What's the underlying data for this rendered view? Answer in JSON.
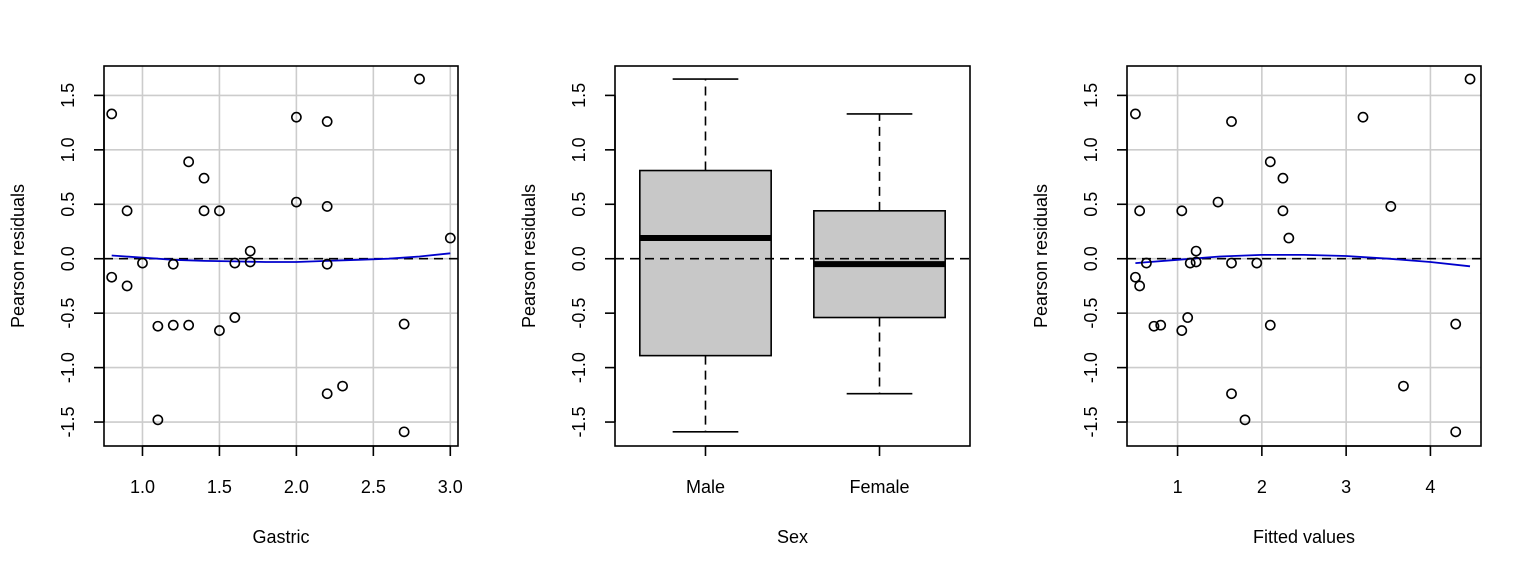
{
  "chart_data": [
    {
      "type": "scatter",
      "xlabel": "Gastric",
      "ylabel": "Pearson residuals",
      "xlim": [
        0.75,
        3.05
      ],
      "ylim": [
        -1.72,
        1.77
      ],
      "x_ticks": [
        "1.0",
        "1.5",
        "2.0",
        "2.5",
        "3.0"
      ],
      "y_ticks": [
        "-1.5",
        "-1.0",
        "-0.5",
        "0.0",
        "0.5",
        "1.0",
        "1.5"
      ],
      "grid": true,
      "reference_line": 0,
      "points": [
        [
          0.8,
          1.33
        ],
        [
          0.8,
          -0.17
        ],
        [
          0.9,
          0.44
        ],
        [
          0.9,
          -0.25
        ],
        [
          1.0,
          -0.04
        ],
        [
          1.1,
          -0.62
        ],
        [
          1.1,
          -1.48
        ],
        [
          1.2,
          -0.61
        ],
        [
          1.2,
          -0.05
        ],
        [
          1.3,
          0.89
        ],
        [
          1.3,
          -0.61
        ],
        [
          1.4,
          0.74
        ],
        [
          1.4,
          0.44
        ],
        [
          1.5,
          0.44
        ],
        [
          1.5,
          -0.66
        ],
        [
          1.6,
          -0.04
        ],
        [
          1.6,
          -0.54
        ],
        [
          1.7,
          0.07
        ],
        [
          1.7,
          -0.03
        ],
        [
          2.0,
          1.3
        ],
        [
          2.0,
          0.52
        ],
        [
          2.2,
          1.26
        ],
        [
          2.2,
          0.48
        ],
        [
          2.2,
          -0.05
        ],
        [
          2.2,
          -1.24
        ],
        [
          2.3,
          -1.17
        ],
        [
          2.7,
          -0.6
        ],
        [
          2.7,
          -1.59
        ],
        [
          2.8,
          1.65
        ],
        [
          3.0,
          0.19
        ]
      ],
      "smooth": [
        [
          0.8,
          0.03
        ],
        [
          1.0,
          0.01
        ],
        [
          1.2,
          -0.01
        ],
        [
          1.4,
          -0.02
        ],
        [
          1.6,
          -0.025
        ],
        [
          1.8,
          -0.03
        ],
        [
          2.0,
          -0.03
        ],
        [
          2.2,
          -0.02
        ],
        [
          2.4,
          -0.01
        ],
        [
          2.6,
          0.0
        ],
        [
          2.8,
          0.02
        ],
        [
          3.0,
          0.05
        ]
      ]
    },
    {
      "type": "boxplot",
      "xlabel": "Sex",
      "ylabel": "Pearson residuals",
      "categories": [
        "Male",
        "Female"
      ],
      "ylim": [
        -1.72,
        1.77
      ],
      "y_ticks": [
        "-1.5",
        "-1.0",
        "-0.5",
        "0.0",
        "0.5",
        "1.0",
        "1.5"
      ],
      "reference_line": 0,
      "boxes": [
        {
          "min": -1.59,
          "q1": -0.89,
          "median": 0.19,
          "q3": 0.81,
          "max": 1.65
        },
        {
          "min": -1.24,
          "q1": -0.54,
          "median": -0.05,
          "q3": 0.44,
          "max": 1.33
        }
      ],
      "fill": "#c8c8c8"
    },
    {
      "type": "scatter",
      "xlabel": "Fitted values",
      "ylabel": "Pearson residuals",
      "xlim": [
        0.4,
        4.6
      ],
      "ylim": [
        -1.72,
        1.77
      ],
      "x_ticks": [
        "1",
        "2",
        "3",
        "4"
      ],
      "y_ticks": [
        "-1.5",
        "-1.0",
        "-0.5",
        "0.0",
        "0.5",
        "1.0",
        "1.5"
      ],
      "grid": true,
      "reference_line": 0,
      "points": [
        [
          0.5,
          1.33
        ],
        [
          0.5,
          -0.17
        ],
        [
          0.55,
          0.44
        ],
        [
          0.55,
          -0.25
        ],
        [
          0.63,
          -0.04
        ],
        [
          0.72,
          -0.62
        ],
        [
          0.8,
          -0.61
        ],
        [
          1.05,
          0.44
        ],
        [
          1.05,
          -0.66
        ],
        [
          1.12,
          -0.54
        ],
        [
          1.15,
          -0.04
        ],
        [
          1.22,
          0.07
        ],
        [
          1.22,
          -0.03
        ],
        [
          1.48,
          0.52
        ],
        [
          1.64,
          1.26
        ],
        [
          1.64,
          -0.04
        ],
        [
          1.64,
          -1.24
        ],
        [
          1.8,
          -1.48
        ],
        [
          1.94,
          -0.04
        ],
        [
          2.1,
          0.89
        ],
        [
          2.1,
          -0.61
        ],
        [
          2.25,
          0.74
        ],
        [
          2.25,
          0.44
        ],
        [
          2.32,
          0.19
        ],
        [
          3.2,
          1.3
        ],
        [
          3.53,
          0.48
        ],
        [
          3.68,
          -1.17
        ],
        [
          4.3,
          -0.6
        ],
        [
          4.3,
          -1.59
        ],
        [
          4.47,
          1.65
        ]
      ],
      "smooth": [
        [
          0.5,
          -0.04
        ],
        [
          1.0,
          -0.01
        ],
        [
          1.5,
          0.02
        ],
        [
          2.0,
          0.035
        ],
        [
          2.5,
          0.035
        ],
        [
          3.0,
          0.025
        ],
        [
          3.5,
          0.0
        ],
        [
          4.0,
          -0.03
        ],
        [
          4.47,
          -0.07
        ]
      ]
    }
  ],
  "colors": {
    "points": "#000000",
    "smooth": "#0000cc",
    "grid": "#cccccc",
    "box_fill": "#c8c8c8"
  }
}
